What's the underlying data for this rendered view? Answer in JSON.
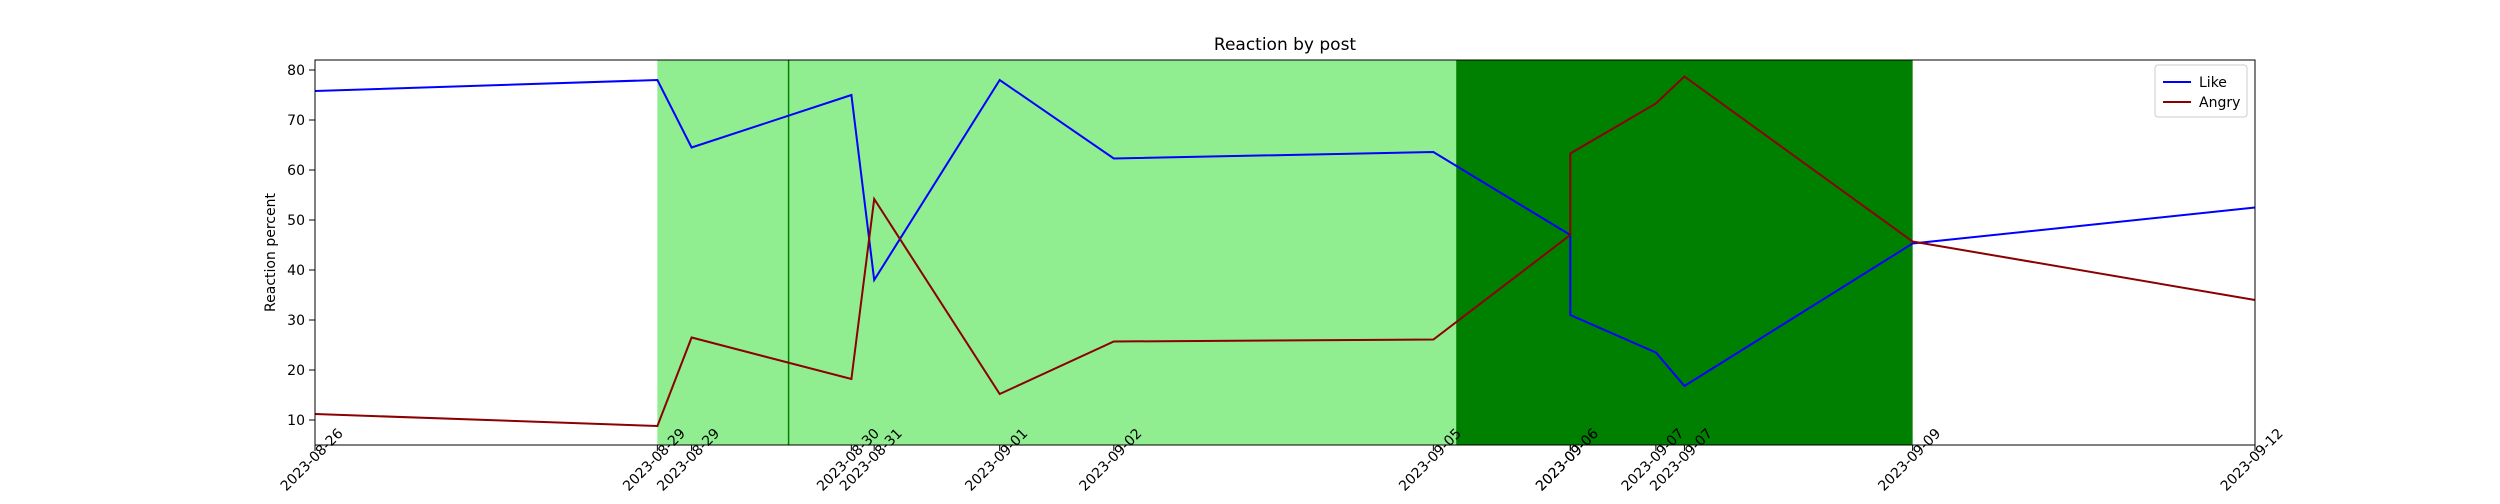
{
  "chart_data": {
    "type": "line",
    "title": "Reaction by post",
    "xlabel": "",
    "ylabel": "Reaction percent",
    "ylim": [
      5,
      82
    ],
    "yticks": [
      10,
      20,
      30,
      40,
      50,
      60,
      70,
      80
    ],
    "x_tick_labels": [
      "2023-08-26",
      "2023-08-29",
      "2023-08-29",
      "2023-08-30",
      "2023-08-31",
      "2023-09-01",
      "2023-09-02",
      "2023-09-05",
      "2023-09-06",
      "2023-09-06",
      "2023-09-07",
      "2023-09-07",
      "2023-09-09",
      "2023-09-12"
    ],
    "legend": {
      "position": "upper right",
      "entries": [
        "Like",
        "Angry"
      ]
    },
    "series": [
      {
        "name": "Like",
        "color": "#0000ff",
        "x": [
          "2023-08-26",
          "2023-08-29",
          "2023-08-29",
          "2023-08-30",
          "2023-08-31",
          "2023-09-01",
          "2023-09-02",
          "2023-09-05",
          "2023-09-06",
          "2023-09-06",
          "2023-09-07",
          "2023-09-07",
          "2023-09-09",
          "2023-09-12"
        ],
        "y": [
          75.8,
          78.0,
          64.5,
          75.0,
          38.0,
          78.0,
          62.3,
          63.6,
          47.0,
          31.0,
          23.5,
          16.8,
          45.3,
          52.5
        ]
      },
      {
        "name": "Angry",
        "color": "#8b0000",
        "x": [
          "2023-08-26",
          "2023-08-29",
          "2023-08-29",
          "2023-08-30",
          "2023-08-31",
          "2023-09-01",
          "2023-09-02",
          "2023-09-05",
          "2023-09-06",
          "2023-09-06",
          "2023-09-07",
          "2023-09-07",
          "2023-09-09",
          "2023-09-12"
        ],
        "y": [
          11.2,
          8.8,
          26.5,
          18.2,
          54.2,
          15.2,
          25.7,
          26.1,
          47.0,
          63.3,
          73.3,
          78.7,
          45.7,
          34.0
        ]
      }
    ],
    "shaded_spans": [
      {
        "from": "2023-08-29",
        "to": "2023-09-05",
        "color": "#90ee90"
      },
      {
        "from": "2023-09-05",
        "to": "2023-09-09",
        "color": "#008000"
      }
    ],
    "vertical_lines": [
      {
        "at": "2023-08-30",
        "color": "#008000"
      }
    ],
    "grid": false
  }
}
